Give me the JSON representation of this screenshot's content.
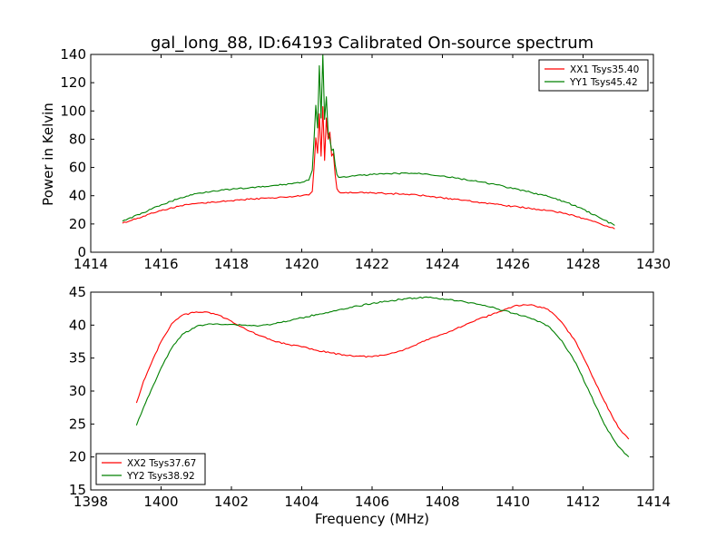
{
  "chart_data": [
    {
      "type": "line",
      "title": "gal_long_88, ID:64193 Calibrated On-source spectrum",
      "xlabel": "",
      "ylabel": "Power in Kelvin",
      "xlim": [
        1414,
        1430
      ],
      "ylim": [
        0,
        140
      ],
      "xticks": [
        1414,
        1416,
        1418,
        1420,
        1422,
        1424,
        1426,
        1428,
        1430
      ],
      "yticks": [
        0,
        20,
        40,
        60,
        80,
        100,
        120,
        140
      ],
      "grid": false,
      "legend_position": "top-right",
      "series": [
        {
          "name": "XX1 Tsys35.40",
          "color": "#ff0000",
          "x": [
            1414.9,
            1415.5,
            1416.0,
            1416.5,
            1417.0,
            1417.5,
            1418.0,
            1418.5,
            1419.0,
            1419.5,
            1420.0,
            1420.2,
            1420.3,
            1420.35,
            1420.4,
            1420.45,
            1420.5,
            1420.55,
            1420.6,
            1420.65,
            1420.7,
            1420.75,
            1420.8,
            1420.85,
            1420.9,
            1420.95,
            1421.0,
            1421.05,
            1421.1,
            1421.2,
            1421.5,
            1422.0,
            1422.5,
            1423.0,
            1423.5,
            1424.0,
            1424.5,
            1425.0,
            1425.5,
            1426.0,
            1426.5,
            1427.0,
            1427.5,
            1428.0,
            1428.5,
            1428.9
          ],
          "y": [
            20.5,
            25.5,
            29.5,
            32.5,
            34.5,
            35.5,
            36.5,
            37.5,
            38.3,
            39.0,
            40.0,
            40.5,
            43,
            60,
            81,
            70,
            98,
            68,
            103,
            65,
            95,
            80,
            85,
            68,
            70,
            55,
            45,
            43,
            42,
            42,
            42,
            42,
            41.5,
            41,
            40,
            38.5,
            37,
            35.5,
            34,
            32.5,
            31,
            29.5,
            27.5,
            24,
            20,
            16.5
          ]
        },
        {
          "name": "YY1 Tsys45.42",
          "color": "#008000",
          "x": [
            1414.9,
            1415.5,
            1416.0,
            1416.5,
            1417.0,
            1417.5,
            1418.0,
            1418.5,
            1419.0,
            1419.5,
            1420.0,
            1420.2,
            1420.3,
            1420.35,
            1420.4,
            1420.45,
            1420.5,
            1420.55,
            1420.6,
            1420.65,
            1420.7,
            1420.75,
            1420.8,
            1420.85,
            1420.9,
            1420.95,
            1421.0,
            1421.05,
            1421.1,
            1421.2,
            1421.5,
            1422.0,
            1422.5,
            1423.0,
            1423.5,
            1424.0,
            1424.5,
            1425.0,
            1425.5,
            1426.0,
            1426.5,
            1427.0,
            1427.5,
            1428.0,
            1428.5,
            1428.9
          ],
          "y": [
            22,
            28,
            33.5,
            38,
            41.5,
            43.5,
            44.5,
            45.5,
            46.5,
            48,
            49.5,
            51,
            58,
            80,
            104,
            88,
            132,
            95,
            140,
            94,
            110,
            85,
            80,
            72,
            73,
            62,
            55,
            53,
            53,
            53.5,
            54,
            55,
            55.5,
            56,
            55.5,
            54,
            52,
            50,
            48,
            45,
            42.5,
            39.5,
            35.5,
            30.5,
            24,
            19
          ]
        }
      ]
    },
    {
      "type": "line",
      "title": "",
      "xlabel": "Frequency (MHz)",
      "ylabel": "",
      "xlim": [
        1398,
        1414
      ],
      "ylim": [
        15,
        45
      ],
      "xticks": [
        1398,
        1400,
        1402,
        1404,
        1406,
        1408,
        1410,
        1412,
        1414
      ],
      "yticks": [
        15,
        20,
        25,
        30,
        35,
        40,
        45
      ],
      "grid": false,
      "legend_position": "bottom-left",
      "series": [
        {
          "name": "XX2 Tsys37.67",
          "color": "#ff0000",
          "x": [
            1399.3,
            1399.5,
            1400.0,
            1400.3,
            1400.6,
            1401.0,
            1401.3,
            1401.6,
            1402.0,
            1402.4,
            1402.8,
            1403.2,
            1403.6,
            1404.0,
            1404.4,
            1404.8,
            1405.2,
            1405.6,
            1406.0,
            1406.4,
            1406.8,
            1407.2,
            1407.6,
            1408.0,
            1408.4,
            1408.8,
            1409.2,
            1409.6,
            1410.0,
            1410.3,
            1410.6,
            1411.0,
            1411.4,
            1411.8,
            1412.2,
            1412.6,
            1413.0,
            1413.3
          ],
          "y": [
            28.2,
            31.5,
            37.5,
            40.2,
            41.5,
            42.0,
            42.0,
            41.6,
            40.6,
            39.4,
            38.4,
            37.6,
            37.1,
            36.7,
            36.2,
            35.8,
            35.5,
            35.3,
            35.2,
            35.5,
            36.1,
            36.9,
            37.8,
            38.6,
            39.5,
            40.4,
            41.2,
            42.0,
            42.8,
            43.1,
            43.0,
            42.4,
            40.4,
            37.4,
            33.0,
            28.5,
            24.5,
            22.7
          ]
        },
        {
          "name": "YY2 Tsys38.92",
          "color": "#008000",
          "x": [
            1399.3,
            1399.5,
            1400.0,
            1400.3,
            1400.6,
            1401.0,
            1401.3,
            1401.6,
            1402.0,
            1402.4,
            1402.8,
            1403.2,
            1403.6,
            1404.0,
            1404.4,
            1404.8,
            1405.2,
            1405.6,
            1406.0,
            1406.4,
            1406.8,
            1407.2,
            1407.6,
            1408.0,
            1408.4,
            1408.8,
            1409.2,
            1409.6,
            1410.0,
            1410.3,
            1410.6,
            1411.0,
            1411.4,
            1411.8,
            1412.2,
            1412.6,
            1413.0,
            1413.3
          ],
          "y": [
            24.8,
            27.5,
            33.5,
            36.5,
            38.6,
            39.8,
            40.1,
            40.2,
            40.1,
            40.0,
            39.9,
            40.2,
            40.6,
            41.1,
            41.6,
            42.0,
            42.4,
            42.9,
            43.3,
            43.6,
            43.9,
            44.1,
            44.2,
            44.0,
            43.7,
            43.4,
            43.0,
            42.4,
            41.8,
            41.4,
            40.9,
            39.9,
            37.6,
            34.2,
            29.6,
            25.0,
            21.6,
            20.0
          ]
        }
      ]
    }
  ]
}
